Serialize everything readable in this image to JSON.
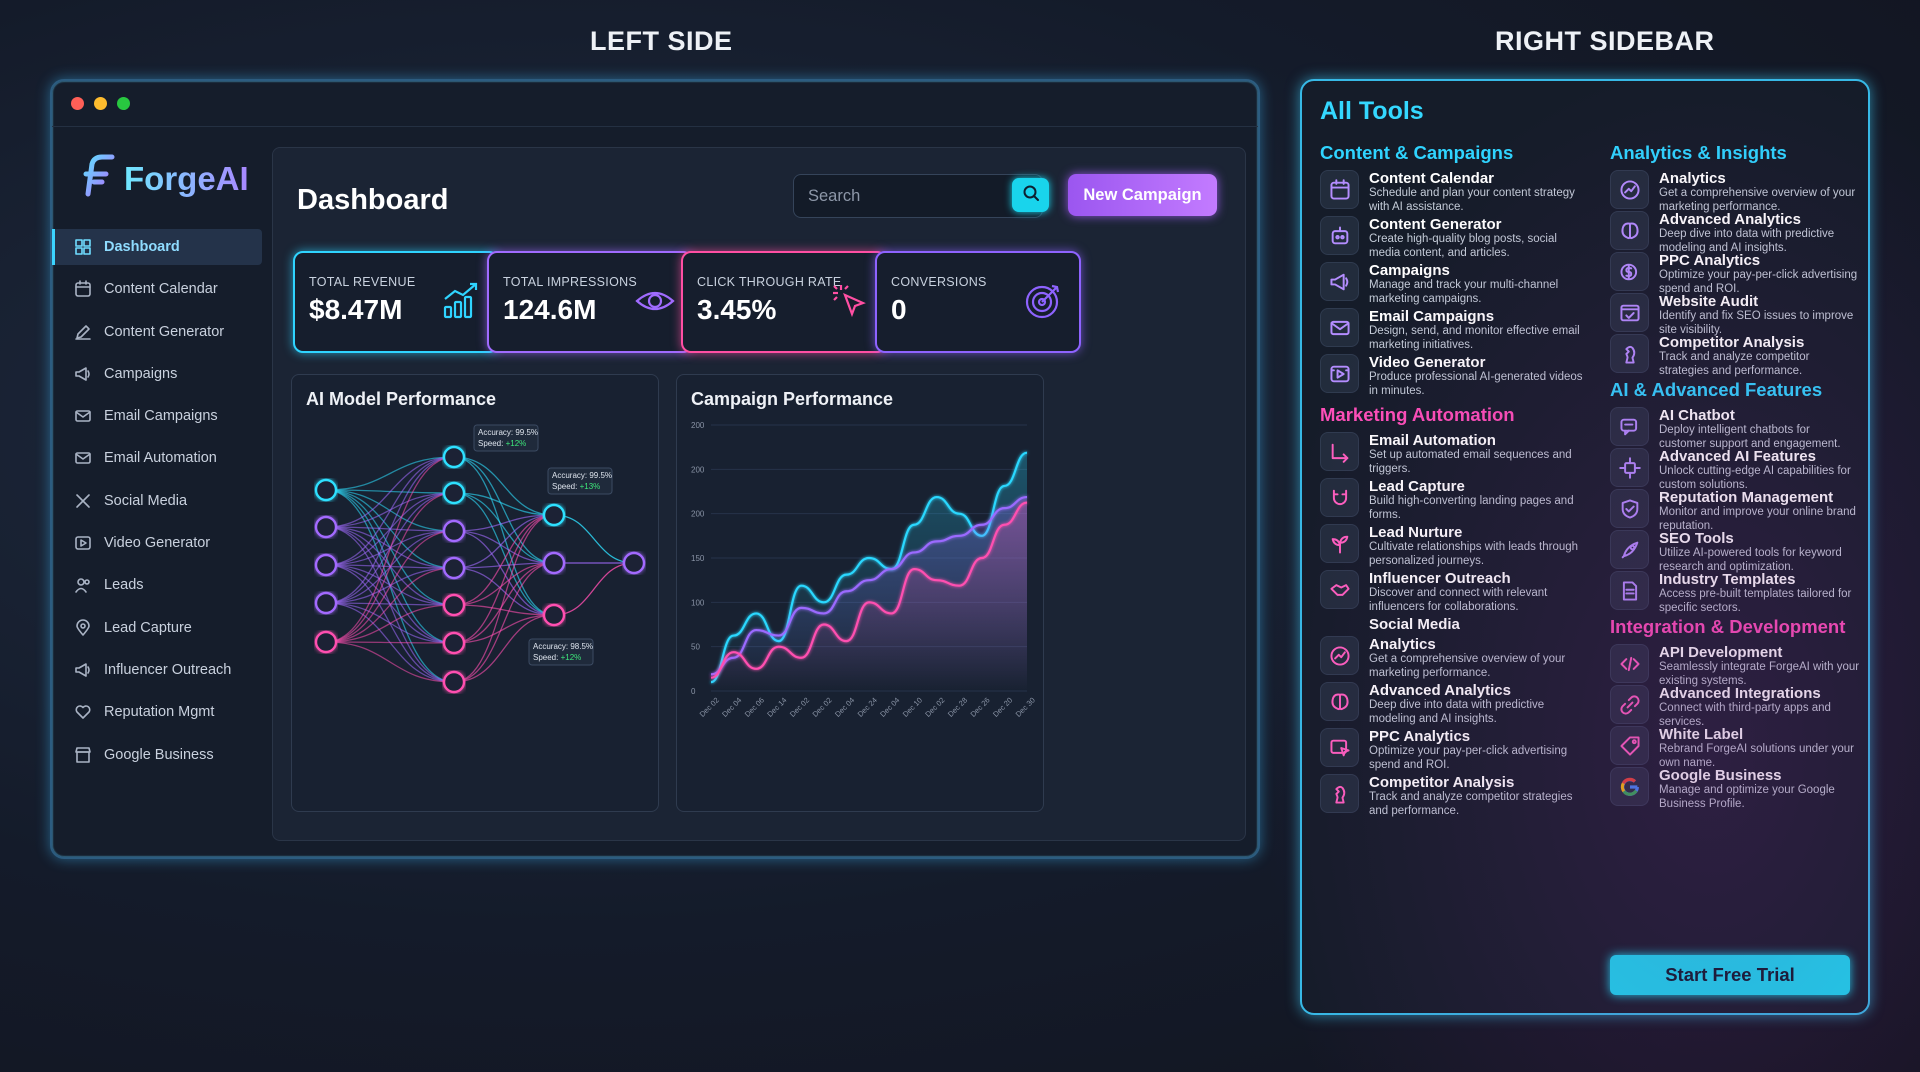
{
  "labels": {
    "left": "LEFT SIDE",
    "right": "RIGHT SIDEBAR"
  },
  "brand": {
    "name": "ForgeAI"
  },
  "sidebar": {
    "items": [
      {
        "label": "Dashboard",
        "icon": "grid-icon",
        "active": true
      },
      {
        "label": "Content Calendar",
        "icon": "calendar-icon"
      },
      {
        "label": "Content Generator",
        "icon": "pen-icon"
      },
      {
        "label": "Campaigns",
        "icon": "megaphone-icon"
      },
      {
        "label": "Email Campaigns",
        "icon": "mail-icon"
      },
      {
        "label": "Email Automation",
        "icon": "mail-icon"
      },
      {
        "label": "Social Media",
        "icon": "x-icon"
      },
      {
        "label": "Video Generator",
        "icon": "play-icon"
      },
      {
        "label": "Leads",
        "icon": "users-icon"
      },
      {
        "label": "Lead Capture",
        "icon": "pin-icon"
      },
      {
        "label": "Influencer Outreach",
        "icon": "megaphone-icon"
      },
      {
        "label": "Reputation Mgmt",
        "icon": "heart-icon"
      },
      {
        "label": "Google Business",
        "icon": "store-icon"
      }
    ]
  },
  "header": {
    "title": "Dashboard",
    "search_placeholder": "Search",
    "new_campaign": "New Campaign"
  },
  "stats": [
    {
      "label": "TOTAL REVENUE",
      "value": "$8.47M",
      "icon": "bar-chart-icon",
      "color": "#2fd4ff"
    },
    {
      "label": "TOTAL IMPRESSIONS",
      "value": "124.6M",
      "icon": "eye-icon",
      "color": "#a06bff"
    },
    {
      "label": "CLICK THROUGH RATE",
      "value": "3.45%",
      "icon": "cursor-click-icon",
      "color": "#ff4fa3"
    },
    {
      "label": "CONVERSIONS",
      "value": "0",
      "icon": "target-icon",
      "color": "#8e63ff"
    }
  ],
  "ai_panel": {
    "title": "AI Model Performance",
    "tooltips": [
      {
        "accuracy": "Accuracy: 99.5%",
        "speed_label": "Speed: ",
        "speed": "+12%"
      },
      {
        "accuracy": "Accuracy: 99.5%",
        "speed_label": "Speed: ",
        "speed": "+13%"
      },
      {
        "accuracy": "Accuracy: 98.5%",
        "speed_label": "Speed: ",
        "speed": "+12%"
      }
    ]
  },
  "chart_data": {
    "type": "line",
    "title": "Campaign Performance",
    "y_ticks": [
      "200",
      "200",
      "200",
      "150",
      "100",
      "50",
      "0"
    ],
    "categories": [
      "Dec 02",
      "Dec 04",
      "Dec 06",
      "Dec 14",
      "Dec 02",
      "Dec 02",
      "Dec 04",
      "Dec 24",
      "Dec 04",
      "Dec 10",
      "Dec 02",
      "Dec 28",
      "Dec 26",
      "Dec 20",
      "Dec 30"
    ],
    "ylim": [
      0,
      240
    ],
    "series": [
      {
        "color": "#29d8ff",
        "values": [
          8,
          50,
          70,
          45,
          95,
          80,
          105,
          120,
          110,
          150,
          175,
          160,
          140,
          185,
          215
        ]
      },
      {
        "color": "#9b6bff",
        "values": [
          15,
          30,
          55,
          50,
          75,
          70,
          90,
          100,
          110,
          125,
          135,
          140,
          150,
          165,
          175
        ]
      },
      {
        "color": "#ff4fb0",
        "values": [
          12,
          35,
          20,
          40,
          30,
          60,
          45,
          80,
          70,
          110,
          100,
          95,
          120,
          150,
          170
        ]
      }
    ]
  },
  "tools": {
    "title": "All Tools",
    "left": [
      {
        "category": "Content & Campaigns",
        "color": "cyan",
        "items": [
          {
            "name": "Content Calendar",
            "desc": "Schedule and plan your content strategy with AI assistance.",
            "icon": "calendar-icon"
          },
          {
            "name": "Content Generator",
            "desc": "Create high-quality blog posts, social media content, and articles.",
            "icon": "robot-icon"
          },
          {
            "name": "Campaigns",
            "desc": "Manage and track your multi-channel marketing campaigns.",
            "icon": "megaphone-icon"
          },
          {
            "name": "Email Campaigns",
            "desc": "Design, send, and monitor effective email marketing initiatives.",
            "icon": "mail-icon"
          },
          {
            "name": "Video Generator",
            "desc": "Produce professional AI-generated videos in minutes.",
            "icon": "film-icon"
          }
        ]
      },
      {
        "category": "Marketing Automation",
        "color": "pink",
        "items": [
          {
            "name": "Email Automation",
            "desc": "Set up automated email sequences and triggers.",
            "icon": "flow-icon"
          },
          {
            "name": "Lead Capture",
            "desc": "Build high-converting landing pages and forms.",
            "icon": "magnet-icon"
          },
          {
            "name": "Lead Nurture",
            "desc": "Cultivate relationships with leads through personalized journeys.",
            "icon": "plant-icon"
          },
          {
            "name": "Influencer Outreach",
            "desc": "Discover and connect with relevant influencers for collaborations.",
            "icon": "handshake-icon"
          },
          {
            "name": "Social Media",
            "desc": "",
            "icon": ""
          },
          {
            "name": "Analytics",
            "desc": "Get a comprehensive overview of your marketing performance.",
            "icon": "chart-icon"
          },
          {
            "name": "Advanced Analytics",
            "desc": "Deep dive into data with predictive modeling and AI insights.",
            "icon": "brain-icon"
          },
          {
            "name": "PPC Analytics",
            "desc": "Optimize your pay-per-click advertising spend and ROI.",
            "icon": "click-icon"
          },
          {
            "name": "Competitor Analysis",
            "desc": "Track and analyze competitor strategies and performance.",
            "icon": "chess-icon"
          }
        ]
      }
    ],
    "right": [
      {
        "category": "Analytics & Insights",
        "color": "cyan",
        "items": [
          {
            "name": "Analytics",
            "desc": "Get a comprehensive overview of your marketing performance.",
            "icon": "chart-icon"
          },
          {
            "name": "Advanced Analytics",
            "desc": "Deep dive into data with predictive modeling and AI insights.",
            "icon": "brain-icon"
          },
          {
            "name": "PPC Analytics",
            "desc": "Optimize your pay-per-click advertising spend and ROI.",
            "icon": "dollar-icon"
          },
          {
            "name": "Website Audit",
            "desc": "Identify and fix SEO issues to improve site visibility.",
            "icon": "browser-icon"
          },
          {
            "name": "Competitor Analysis",
            "desc": "Track and analyze competitor strategies and performance.",
            "icon": "chess-icon"
          }
        ]
      },
      {
        "category": "AI & Advanced Features",
        "color": "cyan",
        "items": [
          {
            "name": "AI Chatbot",
            "desc": "Deploy intelligent chatbots for customer support and engagement.",
            "icon": "chat-icon"
          },
          {
            "name": "Advanced AI Features",
            "desc": "Unlock cutting-edge AI capabilities for custom solutions.",
            "icon": "chip-icon"
          },
          {
            "name": "Reputation Management",
            "desc": "Monitor and improve your online brand reputation.",
            "icon": "shield-icon"
          },
          {
            "name": "SEO Tools",
            "desc": "Utilize AI-powered tools for keyword research and optimization.",
            "icon": "rocket-icon"
          },
          {
            "name": "Industry Templates",
            "desc": "Access pre-built templates tailored for specific sectors.",
            "icon": "doc-icon"
          }
        ]
      },
      {
        "category": "Integration & Development",
        "color": "pink",
        "items": [
          {
            "name": "API Development",
            "desc": "Seamlessly integrate ForgeAI with your existing systems.",
            "icon": "code-icon"
          },
          {
            "name": "Advanced Integrations",
            "desc": "Connect with third-party apps and services.",
            "icon": "link-icon"
          },
          {
            "name": "White Label",
            "desc": "Rebrand ForgeAI solutions under your own name.",
            "icon": "tag-icon"
          },
          {
            "name": "Google Business",
            "desc": "Manage and optimize your Google Business Profile.",
            "icon": "google-icon"
          }
        ]
      }
    ],
    "cta": "Start Free Trial"
  }
}
